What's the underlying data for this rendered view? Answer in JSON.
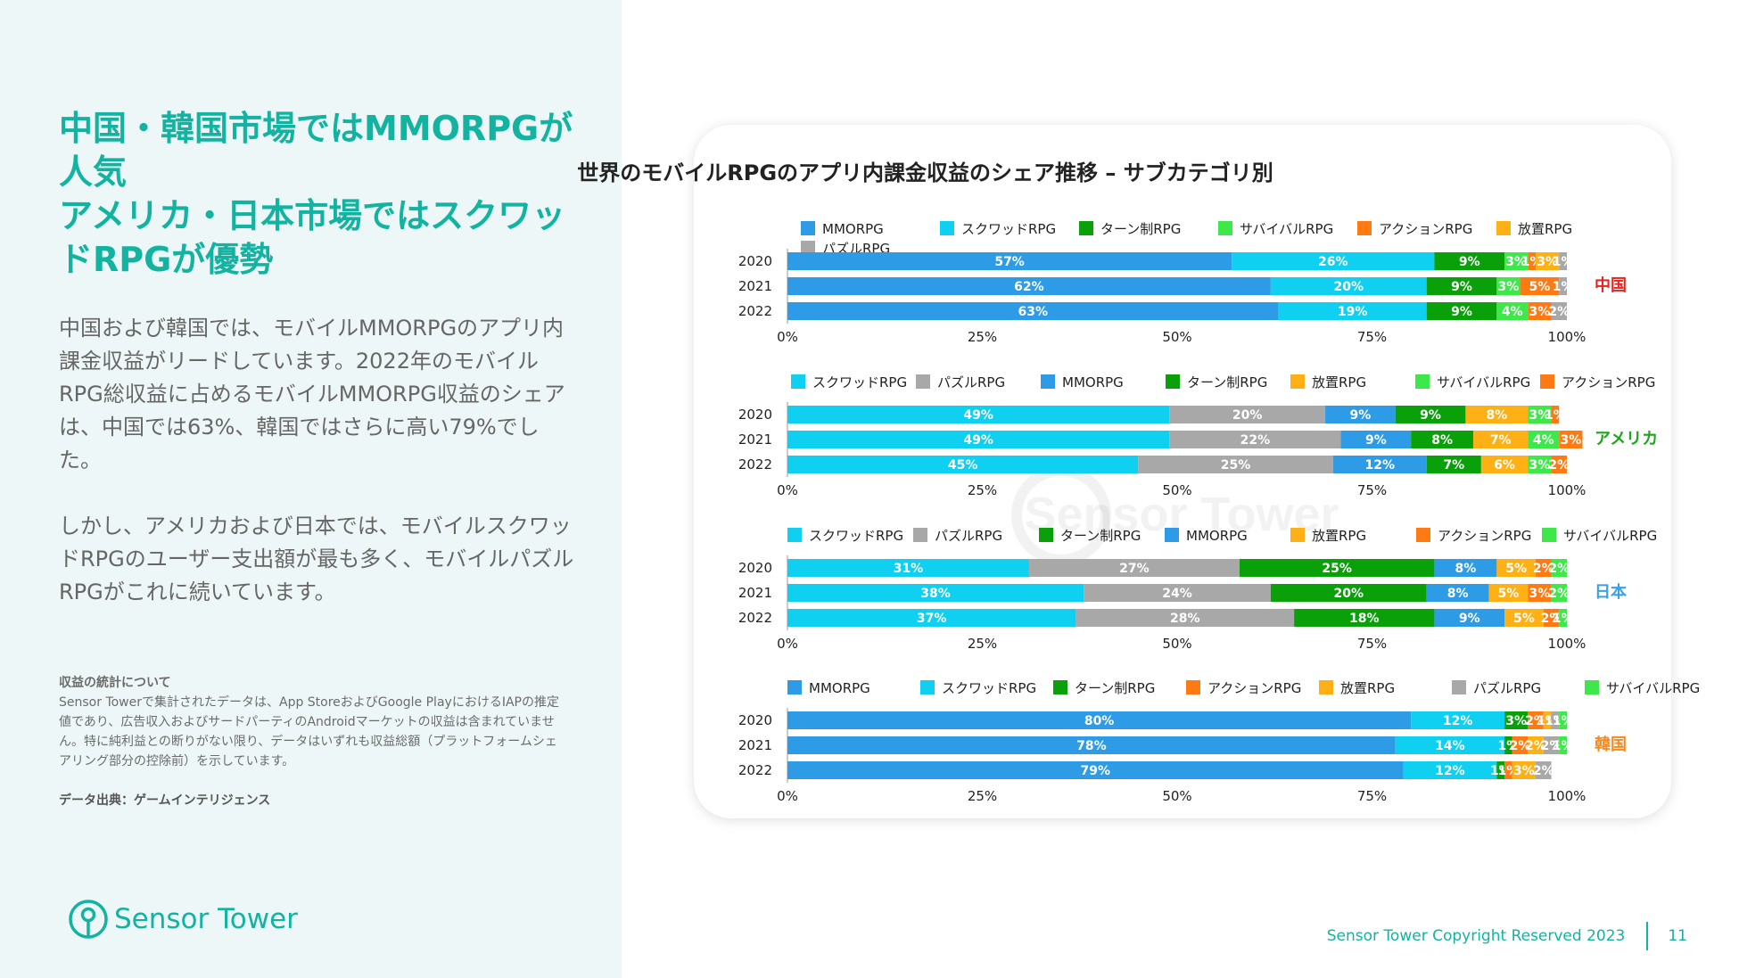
{
  "headline": {
    "line1": "中国・韓国市場ではMMORPGが人気",
    "line2": "アメリカ・日本市場ではスクワッドRPGが優勢"
  },
  "body": {
    "para1": "中国および韓国では、モバイルMMORPGのアプリ内課金収益がリードしています。2022年のモバイルRPG総収益に占めるモバイルMMORPG収益のシェアは、中国では63%、韓国ではさらに高い79%でした。",
    "para2": "しかし、アメリカおよび日本では、モバイルスクワッドRPGのユーザー支出額が最も多く、モバイルパズルRPGがこれに続いています。"
  },
  "note": {
    "title": "収益の統計について",
    "text": "Sensor Towerで集計されたデータは、App StoreおよびGoogle PlayにおけるIAPの推定値であり、広告収入およびサードパーティのAndroidマーケットの収益は含まれていません。特に純利益との断りがない限り、データはいずれも収益総額（プラットフォームシェアリング部分の控除前）を示しています。"
  },
  "source": "データ出典：ゲームインテリジェンス",
  "logo": "Sensor Tower",
  "watermark": "Sensor Tower",
  "footer": {
    "copyright": "Sensor Tower Copyright Reserved 2023",
    "page": "11"
  },
  "colors": {
    "MMORPG": "#2e9be6",
    "スクワッドRPG": "#10d0f2",
    "ターン制RPG": "#0aa00a",
    "サバイバルRPG": "#3ee84a",
    "アクションRPG": "#ff7a12",
    "放置RPG": "#ffb014",
    "パズルRPG": "#a8a8a8",
    "accent": "#12b3a0"
  },
  "chart_data": {
    "type": "bar",
    "orientation": "horizontal-stacked-100",
    "title": "世界のモバイルRPGのアプリ内課金収益のシェア推移 – サブカテゴリ別",
    "xlim": [
      0,
      100
    ],
    "xticks": [
      "0%",
      "25%",
      "50%",
      "75%",
      "100%"
    ],
    "panels": [
      {
        "region": "中国",
        "region_color": "#e8231d",
        "categories": [
          "2020",
          "2021",
          "2022"
        ],
        "legend": [
          "MMORPG",
          "スクワッドRPG",
          "ターン制RPG",
          "サバイバルRPG",
          "アクションRPG",
          "放置RPG",
          "パズルRPG"
        ],
        "series": [
          {
            "name": "MMORPG",
            "values": [
              57,
              62,
              63
            ]
          },
          {
            "name": "スクワッドRPG",
            "values": [
              26,
              20,
              19
            ]
          },
          {
            "name": "ターン制RPG",
            "values": [
              9,
              9,
              9
            ]
          },
          {
            "name": "サバイバルRPG",
            "values": [
              3,
              3,
              4
            ]
          },
          {
            "name": "アクションRPG",
            "values": [
              1,
              5,
              3
            ]
          },
          {
            "name": "放置RPG",
            "values": [
              3,
              0,
              0
            ]
          },
          {
            "name": "パズルRPG",
            "values": [
              1,
              1,
              2
            ]
          }
        ]
      },
      {
        "region": "アメリカ",
        "region_color": "#1fa51f",
        "categories": [
          "2020",
          "2021",
          "2022"
        ],
        "legend": [
          "スクワッドRPG",
          "パズルRPG",
          "MMORPG",
          "ターン制RPG",
          "放置RPG",
          "サバイバルRPG",
          "アクションRPG"
        ],
        "series": [
          {
            "name": "スクワッドRPG",
            "values": [
              49,
              49,
              45
            ]
          },
          {
            "name": "パズルRPG",
            "values": [
              20,
              22,
              25
            ]
          },
          {
            "name": "MMORPG",
            "values": [
              9,
              9,
              12
            ]
          },
          {
            "name": "ターン制RPG",
            "values": [
              9,
              8,
              7
            ]
          },
          {
            "name": "放置RPG",
            "values": [
              8,
              7,
              6
            ]
          },
          {
            "name": "サバイバルRPG",
            "values": [
              3,
              4,
              3
            ]
          },
          {
            "name": "アクションRPG",
            "values": [
              1,
              3,
              2
            ]
          }
        ]
      },
      {
        "region": "日本",
        "region_color": "#3aa0e6",
        "categories": [
          "2020",
          "2021",
          "2022"
        ],
        "legend": [
          "スクワッドRPG",
          "パズルRPG",
          "ターン制RPG",
          "MMORPG",
          "放置RPG",
          "アクションRPG",
          "サバイバルRPG"
        ],
        "series": [
          {
            "name": "スクワッドRPG",
            "values": [
              31,
              38,
              37
            ]
          },
          {
            "name": "パズルRPG",
            "values": [
              27,
              24,
              28
            ]
          },
          {
            "name": "ターン制RPG",
            "values": [
              25,
              20,
              18
            ]
          },
          {
            "name": "MMORPG",
            "values": [
              8,
              8,
              9
            ]
          },
          {
            "name": "放置RPG",
            "values": [
              5,
              5,
              5
            ]
          },
          {
            "name": "アクションRPG",
            "values": [
              2,
              3,
              2
            ]
          },
          {
            "name": "サバイバルRPG",
            "values": [
              2,
              2,
              1
            ]
          }
        ]
      },
      {
        "region": "韓国",
        "region_color": "#f58a1f",
        "categories": [
          "2020",
          "2021",
          "2022"
        ],
        "legend": [
          "MMORPG",
          "スクワッドRPG",
          "ターン制RPG",
          "アクションRPG",
          "放置RPG",
          "パズルRPG",
          "サバイバルRPG"
        ],
        "series": [
          {
            "name": "MMORPG",
            "values": [
              80,
              78,
              79
            ]
          },
          {
            "name": "スクワッドRPG",
            "values": [
              12,
              14,
              12
            ]
          },
          {
            "name": "ターン制RPG",
            "values": [
              3,
              1,
              1
            ]
          },
          {
            "name": "アクションRPG",
            "values": [
              2,
              2,
              1
            ]
          },
          {
            "name": "放置RPG",
            "values": [
              1,
              2,
              3
            ]
          },
          {
            "name": "パズルRPG",
            "values": [
              1,
              2,
              2
            ]
          },
          {
            "name": "サバイバルRPG",
            "values": [
              1,
              1,
              0
            ]
          }
        ]
      }
    ]
  }
}
